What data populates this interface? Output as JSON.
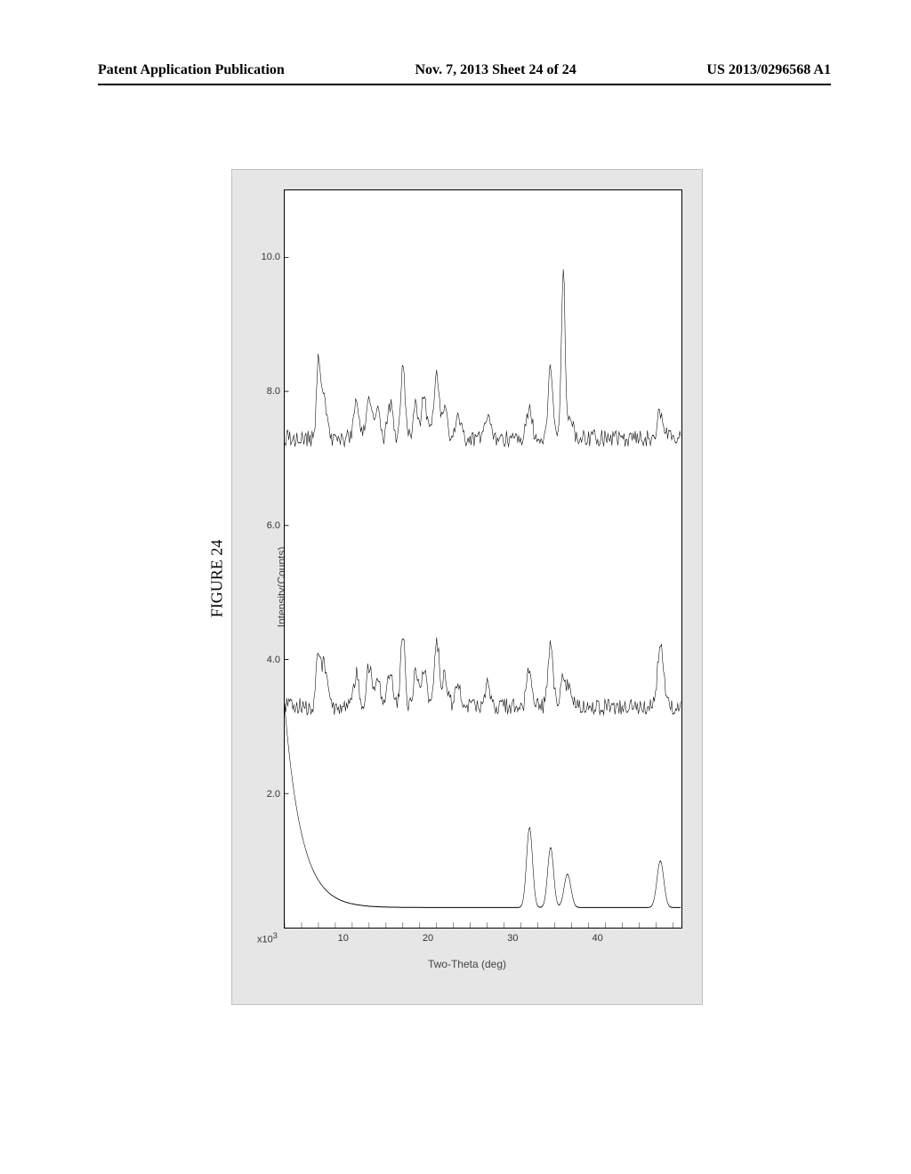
{
  "header": {
    "left": "Patent Application Publication",
    "center": "Nov. 7, 2013  Sheet 24 of 24",
    "right": "US 2013/0296568 A1"
  },
  "figure": {
    "caption": "FIGURE 24",
    "chart": {
      "type": "line",
      "xlabel": "Two-Theta (deg)",
      "ylabel": "Intensity(Counts)",
      "y_multiplier_label": "x10",
      "y_multiplier_exp": "3",
      "xlim": [
        3,
        50
      ],
      "ylim": [
        0,
        11
      ],
      "xtick_labels": [
        "10",
        "20",
        "30",
        "40"
      ],
      "xtick_positions": [
        10,
        20,
        30,
        40
      ],
      "xtick_minor_step": 2,
      "ytick_labels": [
        "2.0",
        "4.0",
        "6.0",
        "8.0",
        "10.0"
      ],
      "ytick_positions": [
        2.0,
        4.0,
        6.0,
        8.0,
        10.0
      ],
      "background_color": "#ffffff",
      "frame_color": "#e6e6e6",
      "axis_color": "#000000",
      "line_color": "#000000",
      "line_width": 1.2,
      "traces": [
        {
          "name": "trace_bottom",
          "offset": 0.3,
          "baseline": 0.3,
          "peaks": [
            {
              "x": 32.0,
              "h": 1.2,
              "w": 0.35
            },
            {
              "x": 34.5,
              "h": 0.9,
              "w": 0.35
            },
            {
              "x": 36.5,
              "h": 0.5,
              "w": 0.4
            },
            {
              "x": 47.5,
              "h": 0.7,
              "w": 0.4
            }
          ],
          "smooth_rise_to": 5
        },
        {
          "name": "trace_middle",
          "offset": 3.3,
          "baseline": 3.3,
          "noise": 0.25,
          "peaks": [
            {
              "x": 7.0,
              "h": 0.9,
              "w": 0.25
            },
            {
              "x": 7.6,
              "h": 0.6,
              "w": 0.2
            },
            {
              "x": 8.0,
              "h": 0.3,
              "w": 0.2
            },
            {
              "x": 11.5,
              "h": 0.5,
              "w": 0.3
            },
            {
              "x": 13.0,
              "h": 0.6,
              "w": 0.3
            },
            {
              "x": 14.0,
              "h": 0.4,
              "w": 0.3
            },
            {
              "x": 15.5,
              "h": 0.5,
              "w": 0.3
            },
            {
              "x": 17.0,
              "h": 1.1,
              "w": 0.25
            },
            {
              "x": 18.5,
              "h": 0.5,
              "w": 0.3
            },
            {
              "x": 19.5,
              "h": 0.6,
              "w": 0.3
            },
            {
              "x": 21.0,
              "h": 1.0,
              "w": 0.3
            },
            {
              "x": 22.0,
              "h": 0.5,
              "w": 0.3
            },
            {
              "x": 23.5,
              "h": 0.4,
              "w": 0.3
            },
            {
              "x": 27.0,
              "h": 0.3,
              "w": 0.4
            },
            {
              "x": 32.0,
              "h": 0.6,
              "w": 0.3
            },
            {
              "x": 34.5,
              "h": 0.9,
              "w": 0.3
            },
            {
              "x": 36.0,
              "h": 0.4,
              "w": 0.3
            },
            {
              "x": 36.8,
              "h": 0.3,
              "w": 0.3
            },
            {
              "x": 47.5,
              "h": 0.9,
              "w": 0.35
            }
          ]
        },
        {
          "name": "trace_top",
          "offset": 7.3,
          "baseline": 7.3,
          "noise": 0.25,
          "peaks": [
            {
              "x": 7.0,
              "h": 1.3,
              "w": 0.22
            },
            {
              "x": 7.6,
              "h": 0.7,
              "w": 0.2
            },
            {
              "x": 8.0,
              "h": 0.3,
              "w": 0.2
            },
            {
              "x": 11.5,
              "h": 0.5,
              "w": 0.3
            },
            {
              "x": 13.0,
              "h": 0.6,
              "w": 0.3
            },
            {
              "x": 14.0,
              "h": 0.4,
              "w": 0.3
            },
            {
              "x": 15.5,
              "h": 0.5,
              "w": 0.3
            },
            {
              "x": 17.0,
              "h": 1.1,
              "w": 0.25
            },
            {
              "x": 18.5,
              "h": 0.5,
              "w": 0.3
            },
            {
              "x": 19.5,
              "h": 0.6,
              "w": 0.3
            },
            {
              "x": 21.0,
              "h": 1.0,
              "w": 0.3
            },
            {
              "x": 22.0,
              "h": 0.5,
              "w": 0.3
            },
            {
              "x": 23.5,
              "h": 0.4,
              "w": 0.3
            },
            {
              "x": 27.0,
              "h": 0.3,
              "w": 0.4
            },
            {
              "x": 32.0,
              "h": 0.5,
              "w": 0.3
            },
            {
              "x": 34.5,
              "h": 1.0,
              "w": 0.3
            },
            {
              "x": 36.0,
              "h": 2.5,
              "w": 0.22
            },
            {
              "x": 36.8,
              "h": 0.3,
              "w": 0.3
            },
            {
              "x": 47.5,
              "h": 0.4,
              "w": 0.35
            }
          ]
        }
      ]
    }
  }
}
